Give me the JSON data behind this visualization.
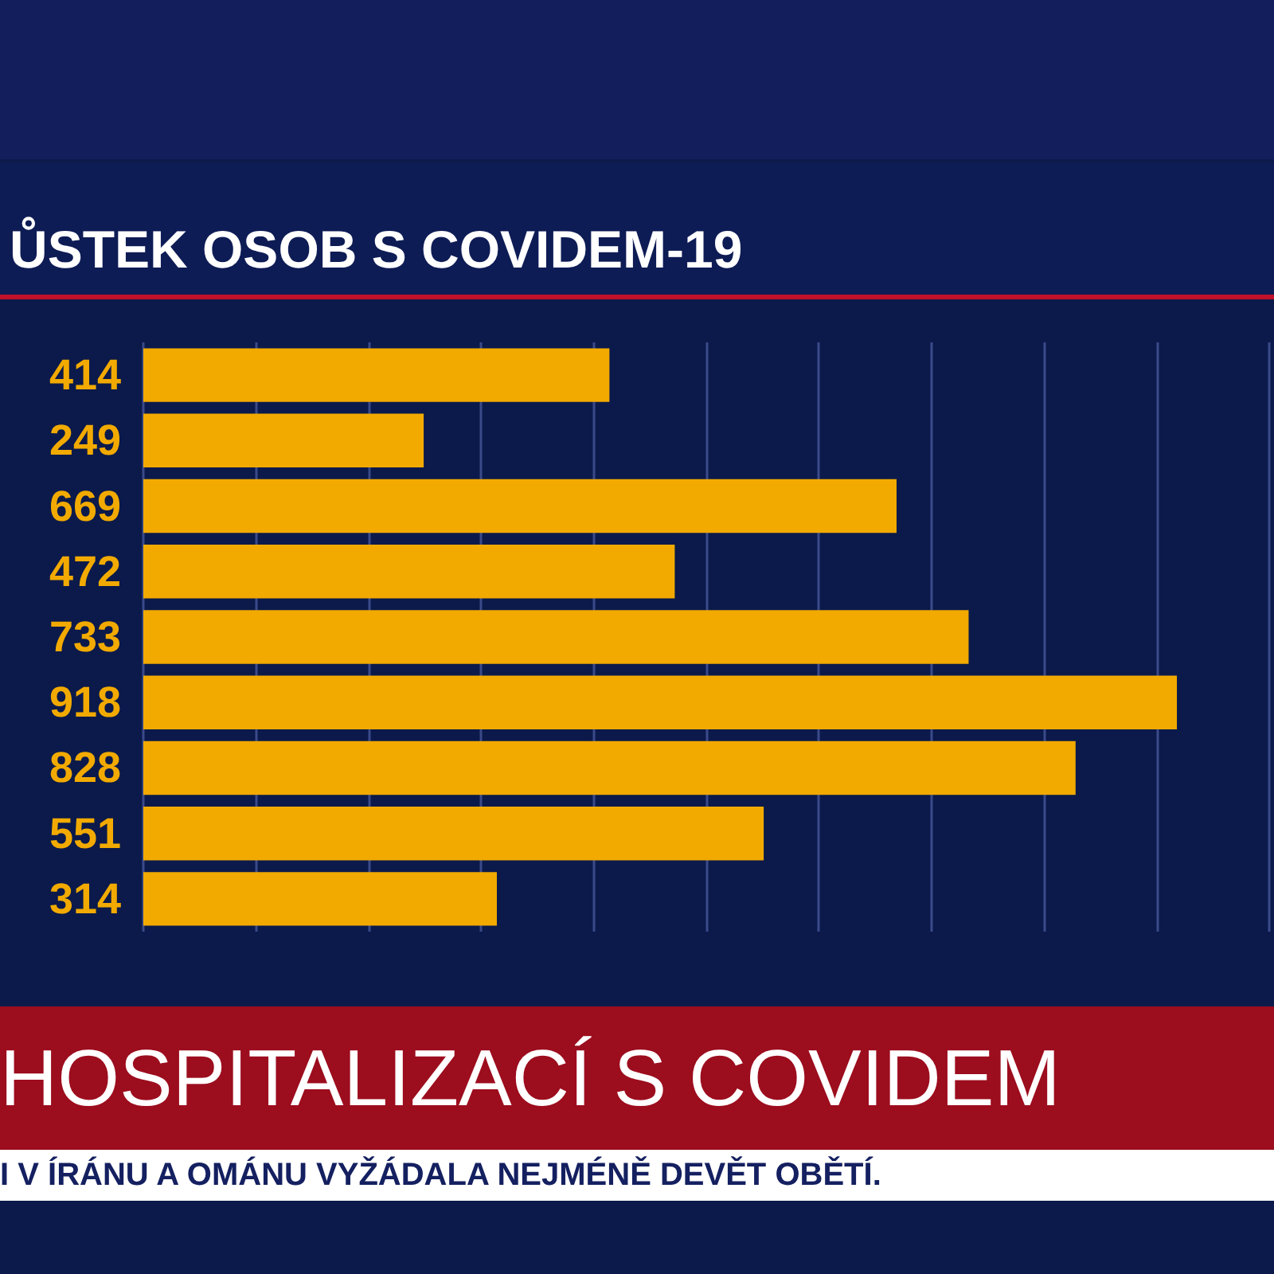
{
  "chart_data": {
    "type": "bar",
    "orientation": "horizontal",
    "title": "ŮSTEK OSOB S COVIDEM-19",
    "categories": [
      null,
      null,
      null,
      null,
      null,
      null,
      null,
      null,
      null
    ],
    "values": [
      414,
      249,
      669,
      472,
      733,
      918,
      828,
      551,
      314
    ],
    "color": "#f2aa00",
    "data_labels": true,
    "grid": "x",
    "xlim": [
      0,
      1000
    ],
    "xticks": [
      {
        "value": 0,
        "label": null
      },
      {
        "value": 100,
        "label": null
      },
      {
        "value": 200,
        "label": null
      },
      {
        "value": 300,
        "label": null
      },
      {
        "value": 400,
        "label": null
      },
      {
        "value": 500,
        "label": null
      },
      {
        "value": 600,
        "label": null
      },
      {
        "value": 700,
        "label": null
      },
      {
        "value": 800,
        "label": null
      },
      {
        "value": 900,
        "label": null
      },
      {
        "value": 1000,
        "label": null
      }
    ],
    "annotations": [
      "HOSPITALIZACÍ S COVIDEM",
      "I V ÍRÁNU A OMÁNU VYŽÁDALA NEJMÉNĚ DEVĚT OBĚTÍ."
    ]
  }
}
